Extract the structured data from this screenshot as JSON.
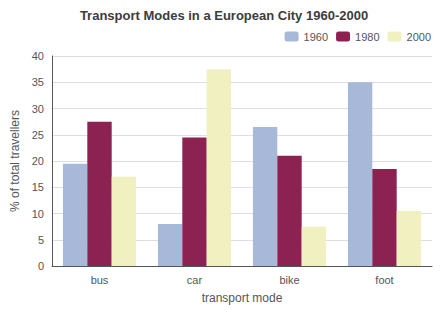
{
  "chart_data": {
    "type": "bar",
    "title": "Transport Modes in a European City 1960-2000",
    "xlabel": "transport mode",
    "ylabel": "% of total travellers",
    "categories": [
      "bus",
      "car",
      "bike",
      "foot"
    ],
    "series": [
      {
        "name": "1960",
        "color": "#a8b8d8",
        "values": [
          19.5,
          8,
          26.5,
          35
        ]
      },
      {
        "name": "1980",
        "color": "#8b2252",
        "values": [
          27.5,
          24.5,
          21,
          18.5
        ]
      },
      {
        "name": "2000",
        "color": "#f0f0c0",
        "values": [
          17,
          37.5,
          7.5,
          10.5
        ]
      }
    ],
    "ylim": [
      0,
      40
    ],
    "yticks": [
      0,
      5,
      10,
      15,
      20,
      25,
      30,
      35,
      40
    ],
    "grid": true,
    "legend": "upper right"
  }
}
